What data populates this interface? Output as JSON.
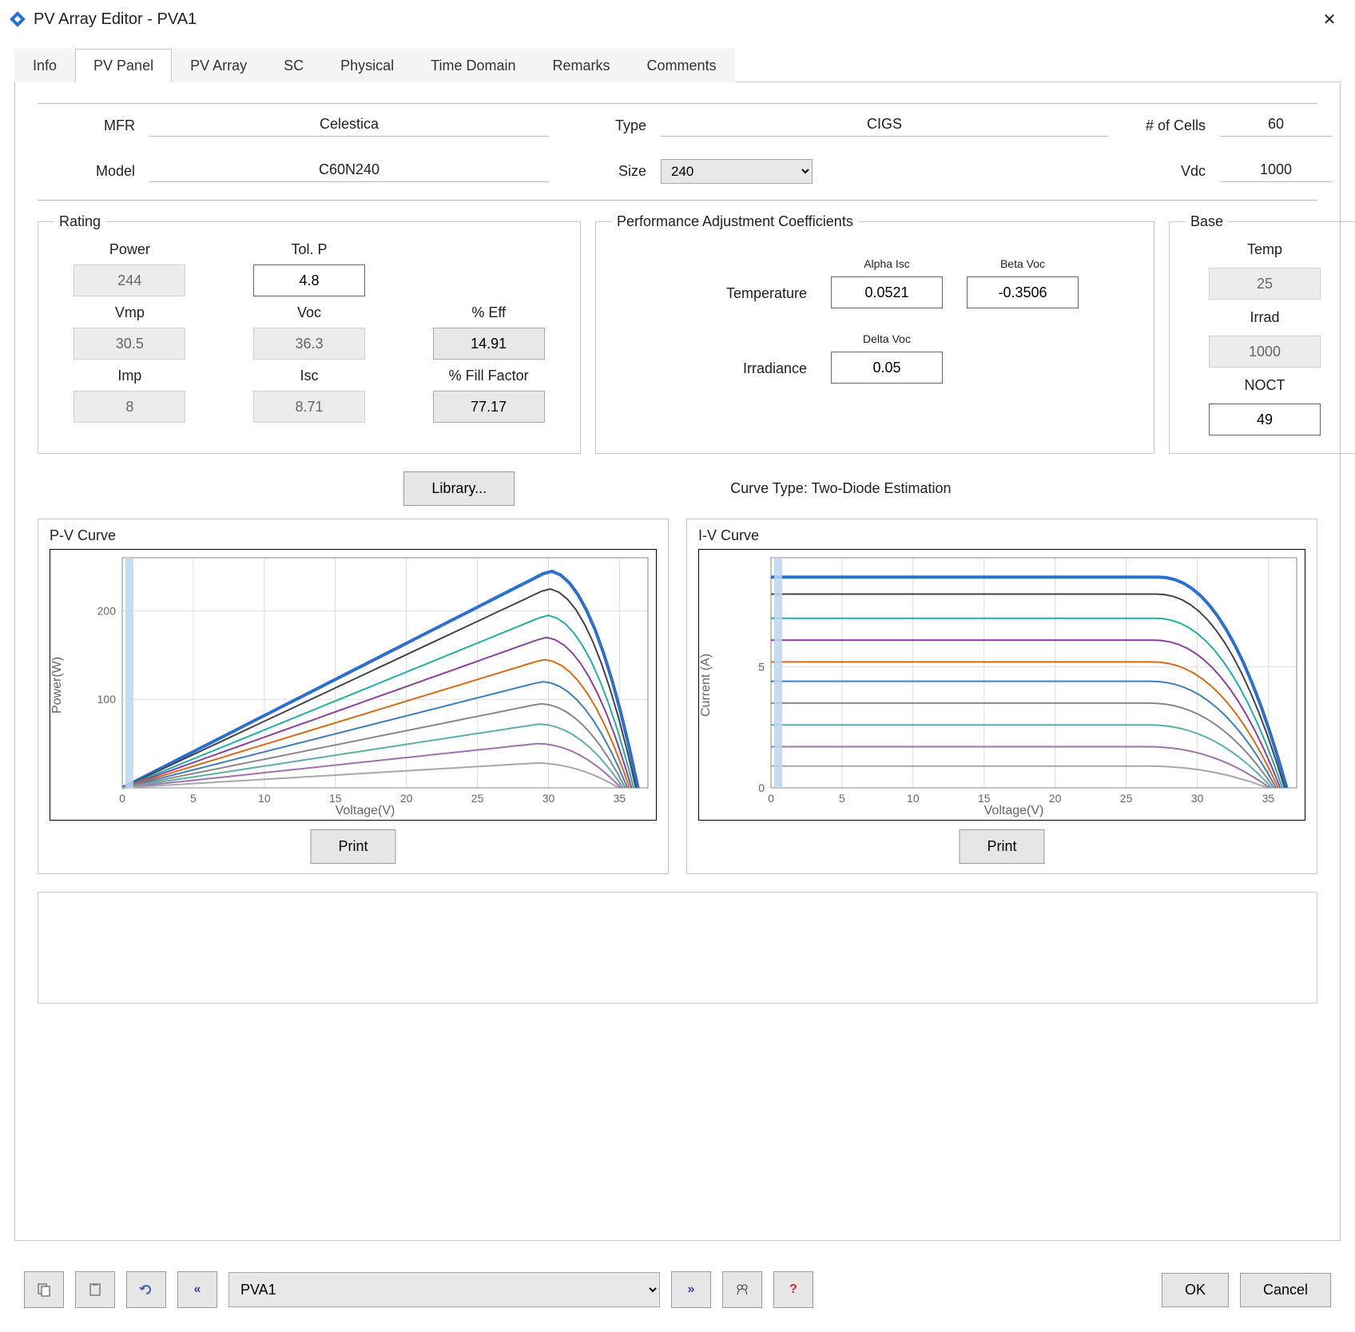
{
  "window": {
    "title": "PV Array Editor - PVA1"
  },
  "tabs": [
    "Info",
    "PV Panel",
    "PV Array",
    "SC",
    "Physical",
    "Time Domain",
    "Remarks",
    "Comments"
  ],
  "active_tab": 1,
  "header": {
    "mfr_label": "MFR",
    "mfr": "Celestica",
    "model_label": "Model",
    "model": "C60N240",
    "type_label": "Type",
    "type": "CIGS",
    "size_label": "Size",
    "size": "240",
    "cells_label": "# of Cells",
    "cells": "60",
    "vdc_label": "Vdc",
    "vdc": "1000"
  },
  "rating": {
    "legend": "Rating",
    "power_label": "Power",
    "power": "244",
    "tolp_label": "Tol. P",
    "tolp": "4.8",
    "vmp_label": "Vmp",
    "vmp": "30.5",
    "voc_label": "Voc",
    "voc": "36.3",
    "eff_label": "% Eff",
    "eff": "14.91",
    "imp_label": "Imp",
    "imp": "8",
    "isc_label": "Isc",
    "isc": "8.71",
    "ff_label": "% Fill Factor",
    "ff": "77.17"
  },
  "perf": {
    "legend": "Performance Adjustment Coefficients",
    "temp_label": "Temperature",
    "alpha_label": "Alpha Isc",
    "alpha": "0.0521",
    "beta_label": "Beta Voc",
    "beta": "-0.3506",
    "irr_label": "Irradiance",
    "delta_label": "Delta Voc",
    "delta": "0.05"
  },
  "base": {
    "legend": "Base",
    "temp_label": "Temp",
    "temp": "25",
    "irrad_label": "Irrad",
    "irrad": "1000",
    "noct_label": "NOCT",
    "noct": "49"
  },
  "library_btn": "Library...",
  "curve_type_text": "Curve Type: Two-Diode Estimation",
  "pv_chart": {
    "title": "P-V Curve",
    "xlabel": "Voltage(V)",
    "ylabel": "Power(W)",
    "xlim": [
      0,
      37
    ],
    "ylim": [
      0,
      260
    ],
    "xticks": [
      0,
      5,
      10,
      15,
      20,
      25,
      30,
      35
    ],
    "yticks": [
      100,
      200
    ],
    "colors": [
      "#2b6fd1",
      "#444444",
      "#1eb0a7",
      "#8e3fa0",
      "#d96b15",
      "#3f7fbf",
      "#888888",
      "#5cb0a8",
      "#a070b0",
      "#a8a8a8"
    ],
    "peaks": [
      245,
      225,
      195,
      170,
      145,
      120,
      95,
      72,
      50,
      28
    ],
    "print": "Print"
  },
  "iv_chart": {
    "title": "I-V Curve",
    "xlabel": "Voltage(V)",
    "ylabel": "Current (A)",
    "xlim": [
      0,
      37
    ],
    "ylim": [
      0,
      9.5
    ],
    "xticks": [
      0,
      5,
      10,
      15,
      20,
      25,
      30,
      35
    ],
    "yticks": [
      0,
      5
    ],
    "colors": [
      "#2b6fd1",
      "#444444",
      "#1eb0a7",
      "#8e3fa0",
      "#d96b15",
      "#3f7fbf",
      "#888888",
      "#5cb0a8",
      "#a070b0",
      "#a8a8a8"
    ],
    "isc": [
      8.7,
      8.0,
      7.0,
      6.1,
      5.2,
      4.4,
      3.5,
      2.6,
      1.7,
      0.9
    ],
    "print": "Print"
  },
  "footer": {
    "combo": "PVA1",
    "ok": "OK",
    "cancel": "Cancel"
  }
}
